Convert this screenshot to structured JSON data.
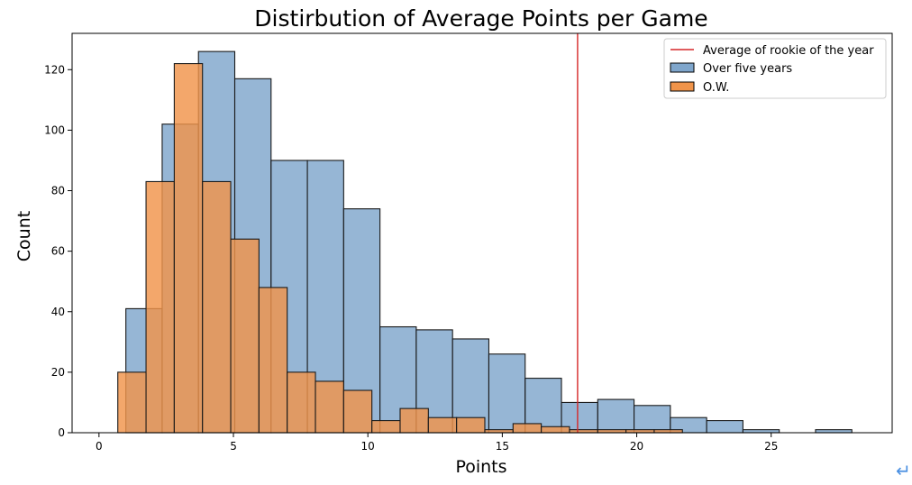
{
  "chart_data": {
    "type": "bar",
    "title": "Distirbution of Average Points per Game",
    "xlabel": "Points",
    "ylabel": "Count",
    "xlim": [
      -1,
      29.5
    ],
    "ylim": [
      0,
      132
    ],
    "xticks": [
      0,
      5,
      10,
      15,
      20,
      25
    ],
    "yticks": [
      0,
      20,
      40,
      60,
      80,
      100,
      120
    ],
    "grid": false,
    "legend_position": "top-right",
    "series": [
      {
        "name": "Over five years",
        "color": "#7fa6cc",
        "bins": [
          {
            "x0": 1.0,
            "x1": 2.35,
            "count": 41
          },
          {
            "x0": 2.35,
            "x1": 3.7,
            "count": 102
          },
          {
            "x0": 3.7,
            "x1": 5.05,
            "count": 126
          },
          {
            "x0": 5.05,
            "x1": 6.4,
            "count": 117
          },
          {
            "x0": 6.4,
            "x1": 7.75,
            "count": 90
          },
          {
            "x0": 7.75,
            "x1": 9.1,
            "count": 90
          },
          {
            "x0": 9.1,
            "x1": 10.45,
            "count": 74
          },
          {
            "x0": 10.45,
            "x1": 11.8,
            "count": 35
          },
          {
            "x0": 11.8,
            "x1": 13.15,
            "count": 34
          },
          {
            "x0": 13.15,
            "x1": 14.5,
            "count": 31
          },
          {
            "x0": 14.5,
            "x1": 15.85,
            "count": 26
          },
          {
            "x0": 15.85,
            "x1": 17.2,
            "count": 18
          },
          {
            "x0": 17.2,
            "x1": 18.55,
            "count": 10
          },
          {
            "x0": 18.55,
            "x1": 19.9,
            "count": 11
          },
          {
            "x0": 19.9,
            "x1": 21.25,
            "count": 9
          },
          {
            "x0": 21.25,
            "x1": 22.6,
            "count": 5
          },
          {
            "x0": 22.6,
            "x1": 23.95,
            "count": 4
          },
          {
            "x0": 23.95,
            "x1": 25.3,
            "count": 1
          },
          {
            "x0": 25.3,
            "x1": 26.65,
            "count": 0
          },
          {
            "x0": 26.65,
            "x1": 28.0,
            "count": 1
          }
        ]
      },
      {
        "name": "O.W.",
        "color": "#f0944a",
        "bins": [
          {
            "x0": 0.7,
            "x1": 1.75,
            "count": 20
          },
          {
            "x0": 1.75,
            "x1": 2.8,
            "count": 83
          },
          {
            "x0": 2.8,
            "x1": 3.85,
            "count": 122
          },
          {
            "x0": 3.85,
            "x1": 4.9,
            "count": 83
          },
          {
            "x0": 4.9,
            "x1": 5.95,
            "count": 64
          },
          {
            "x0": 5.95,
            "x1": 7.0,
            "count": 48
          },
          {
            "x0": 7.0,
            "x1": 8.05,
            "count": 20
          },
          {
            "x0": 8.05,
            "x1": 9.1,
            "count": 17
          },
          {
            "x0": 9.1,
            "x1": 10.15,
            "count": 14
          },
          {
            "x0": 10.15,
            "x1": 11.2,
            "count": 4
          },
          {
            "x0": 11.2,
            "x1": 12.25,
            "count": 8
          },
          {
            "x0": 12.25,
            "x1": 13.3,
            "count": 5
          },
          {
            "x0": 13.3,
            "x1": 14.35,
            "count": 5
          },
          {
            "x0": 14.35,
            "x1": 15.4,
            "count": 1
          },
          {
            "x0": 15.4,
            "x1": 16.45,
            "count": 3
          },
          {
            "x0": 16.45,
            "x1": 17.5,
            "count": 2
          },
          {
            "x0": 17.5,
            "x1": 18.55,
            "count": 1
          },
          {
            "x0": 18.55,
            "x1": 19.6,
            "count": 1
          },
          {
            "x0": 19.6,
            "x1": 20.65,
            "count": 1
          },
          {
            "x0": 20.65,
            "x1": 21.7,
            "count": 1
          }
        ]
      }
    ],
    "reference_line": {
      "name": "Average of rookie of the year",
      "x": 17.8,
      "color": "#d62728"
    }
  },
  "return_icon": "↵"
}
